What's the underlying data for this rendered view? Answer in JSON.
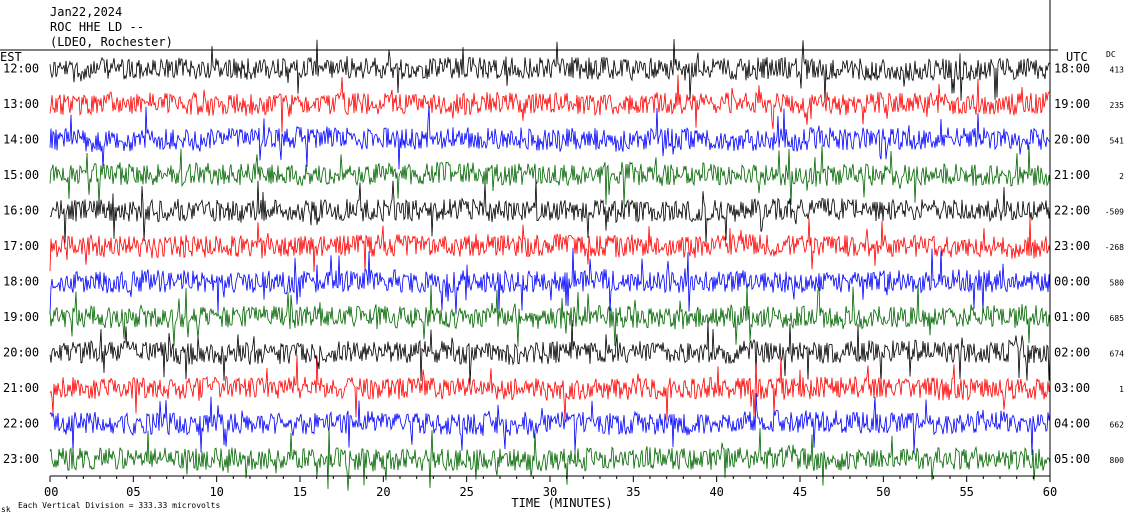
{
  "header": {
    "date": "Jan22,2024",
    "station": "ROC HHE LD --",
    "network": "(LDEO, Rochester)"
  },
  "left_axis_label": "EST",
  "right_axis_label": "UTC",
  "dc_label": "DC",
  "footer": {
    "note": "Each Vertical Division = 333.33 microvolts",
    "corner_mark": "sk"
  },
  "chart_data": {
    "type": "line",
    "xlabel": "TIME (MINUTES)",
    "xlim": [
      0,
      60
    ],
    "x_ticks": [
      "00",
      "05",
      "10",
      "15",
      "20",
      "25",
      "30",
      "35",
      "40",
      "45",
      "50",
      "55",
      "60"
    ],
    "colors": {
      "black": "#000000",
      "red": "#ff0000",
      "blue": "#0000ff",
      "green": "#006600"
    },
    "traces": [
      {
        "est": "12:00",
        "utc": "18:00",
        "dc": "413",
        "color": "black"
      },
      {
        "est": "13:00",
        "utc": "19:00",
        "dc": "235",
        "color": "red"
      },
      {
        "est": "14:00",
        "utc": "20:00",
        "dc": "541",
        "color": "blue"
      },
      {
        "est": "15:00",
        "utc": "21:00",
        "dc": "2",
        "color": "green"
      },
      {
        "est": "16:00",
        "utc": "22:00",
        "dc": "-509",
        "color": "black"
      },
      {
        "est": "17:00",
        "utc": "23:00",
        "dc": "-268",
        "color": "red"
      },
      {
        "est": "18:00",
        "utc": "00:00",
        "dc": "580",
        "color": "blue"
      },
      {
        "est": "19:00",
        "utc": "01:00",
        "dc": "685",
        "color": "green"
      },
      {
        "est": "20:00",
        "utc": "02:00",
        "dc": "674",
        "color": "black"
      },
      {
        "est": "21:00",
        "utc": "03:00",
        "dc": "1",
        "color": "red"
      },
      {
        "est": "22:00",
        "utc": "04:00",
        "dc": "662",
        "color": "blue"
      },
      {
        "est": "23:00",
        "utc": "05:00",
        "dc": "800",
        "color": "green"
      }
    ]
  }
}
